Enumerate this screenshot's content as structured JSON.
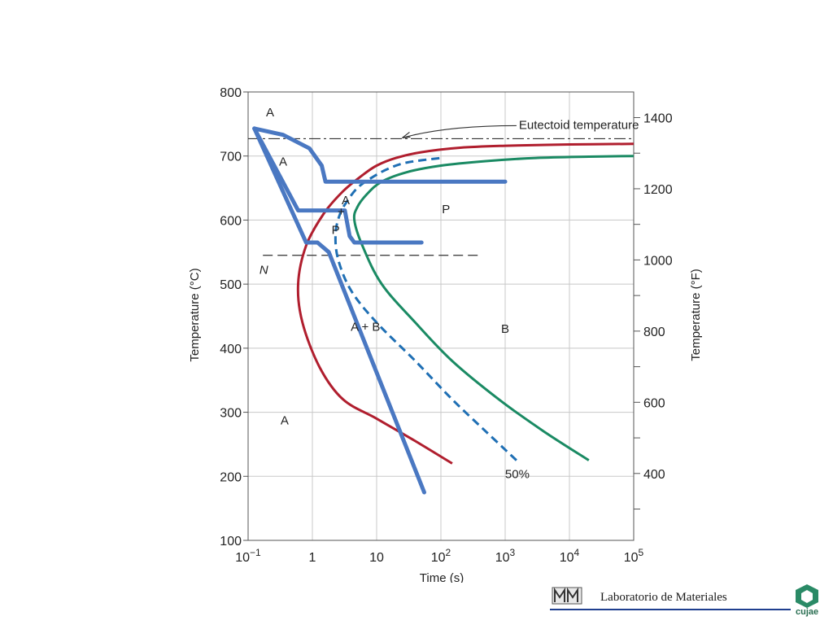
{
  "chart_data": {
    "type": "line",
    "xlabel": "Time (s)",
    "ylabel_left": "Temperature (°C)",
    "ylabel_right": "Temperature (°F)",
    "xscale": "log",
    "xlim": [
      0.1,
      100000
    ],
    "ylim": [
      100,
      800
    ],
    "x_ticks": [
      {
        "base": "10",
        "exp": "−1",
        "value": 0.1
      },
      {
        "base": "1",
        "exp": "",
        "value": 1
      },
      {
        "base": "10",
        "exp": "",
        "value": 10
      },
      {
        "base": "10",
        "exp": "2",
        "value": 100
      },
      {
        "base": "10",
        "exp": "3",
        "value": 1000
      },
      {
        "base": "10",
        "exp": "4",
        "value": 10000
      },
      {
        "base": "10",
        "exp": "5",
        "value": 100000
      }
    ],
    "y_ticks_left": [
      "100",
      "200",
      "300",
      "400",
      "500",
      "600",
      "700",
      "800"
    ],
    "y_ticks_right": [
      "400",
      "600",
      "800",
      "1000",
      "1200",
      "1400"
    ],
    "grid": true,
    "eutectoid": {
      "label": "Eutectoid temperature",
      "y": 727
    },
    "n_label": "N",
    "n_line_y": 545,
    "series": [
      {
        "id": "start-curve",
        "color": "#b01e2e",
        "style": "solid",
        "x": [
          150,
          40,
          10,
          3,
          1.3,
          0.7,
          0.6,
          0.8,
          1.5,
          3,
          6,
          10,
          20,
          50,
          200,
          1000,
          10000,
          100000
        ],
        "y": [
          220,
          255,
          290,
          320,
          370,
          440,
          500,
          560,
          610,
          645,
          670,
          685,
          697,
          706,
          713,
          716,
          718,
          719
        ]
      },
      {
        "id": "fifty-percent-curve",
        "color": "#1f6fb4",
        "style": "dashed",
        "label": "50%",
        "x": [
          1500,
          500,
          150,
          40,
          10,
          4,
          2.5,
          2.3,
          2.7,
          3.5,
          5,
          8,
          15,
          30,
          100
        ],
        "y": [
          225,
          270,
          320,
          380,
          440,
          490,
          540,
          580,
          610,
          630,
          650,
          665,
          680,
          690,
          697
        ]
      },
      {
        "id": "finish-curve",
        "color": "#1a8a63",
        "style": "solid",
        "x": [
          20000,
          4000,
          800,
          150,
          40,
          12,
          6,
          4.5,
          5,
          7,
          12,
          30,
          100,
          500,
          3000,
          20000,
          100000
        ],
        "y": [
          225,
          270,
          320,
          380,
          440,
          500,
          560,
          600,
          620,
          640,
          660,
          675,
          685,
          692,
          697,
          699,
          700
        ]
      }
    ],
    "cooling_paths": [
      {
        "id": "cooling-path-1",
        "color": "#4a78c2",
        "x": [
          0.125,
          0.35,
          0.9,
          1.4,
          1.6,
          1000
        ],
        "y": [
          743,
          733,
          712,
          685,
          660,
          660
        ]
      },
      {
        "id": "cooling-path-2",
        "color": "#4a78c2",
        "x": [
          0.125,
          0.6,
          1,
          3.2,
          3.8,
          4.5,
          5,
          50
        ],
        "y": [
          743,
          615,
          615,
          615,
          575,
          565,
          565,
          565
        ]
      },
      {
        "id": "cooling-path-3",
        "color": "#4a78c2",
        "x": [
          0.125,
          0.8,
          1.2,
          1.8,
          55
        ],
        "y": [
          743,
          565,
          565,
          550,
          175
        ]
      }
    ],
    "annotations": [
      {
        "text": "A",
        "x": 0.22,
        "y": 762
      },
      {
        "text": "A",
        "x": 0.35,
        "y": 685
      },
      {
        "text": "A",
        "x": 3.3,
        "y": 625
      },
      {
        "text": "+",
        "x": 2.8,
        "y": 607
      },
      {
        "text": "P",
        "x": 2.3,
        "y": 578
      },
      {
        "text": "P",
        "x": 120,
        "y": 611
      },
      {
        "text": "A + B",
        "x": 6.7,
        "y": 427
      },
      {
        "text": "B",
        "x": 1000,
        "y": 424
      },
      {
        "text": "A",
        "x": 0.37,
        "y": 281
      }
    ]
  },
  "footer": {
    "lab_name": "Laboratorio de Materiales",
    "org_name": "cujae"
  },
  "colors": {
    "start_curve": "#b01e2e",
    "fifty_percent_curve": "#1f6fb4",
    "finish_curve": "#1a8a63",
    "cooling_paths": "#4a78c2",
    "grid": "#c8c8c8"
  }
}
